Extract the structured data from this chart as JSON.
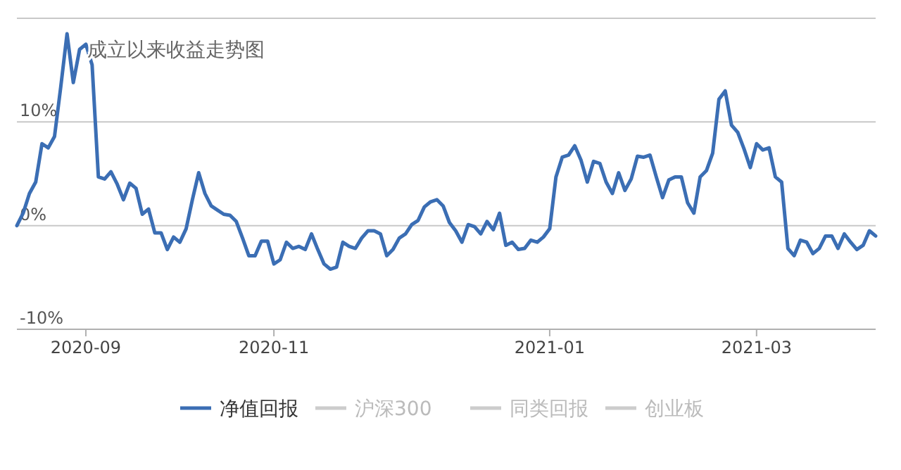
{
  "chart_data": {
    "type": "line",
    "title": "成立以来收益走势图",
    "categories": [
      null,
      null,
      null,
      null,
      null,
      null,
      null,
      null,
      null,
      null,
      null,
      "2020-09",
      null,
      null,
      null,
      null,
      null,
      null,
      null,
      null,
      null,
      null,
      null,
      null,
      null,
      null,
      null,
      null,
      null,
      null,
      null,
      null,
      null,
      null,
      null,
      null,
      null,
      null,
      null,
      null,
      null,
      "2020-11",
      null,
      null,
      null,
      null,
      null,
      null,
      null,
      null,
      null,
      null,
      null,
      null,
      null,
      null,
      null,
      null,
      null,
      null,
      null,
      null,
      null,
      null,
      null,
      null,
      null,
      null,
      null,
      null,
      null,
      null,
      null,
      null,
      null,
      null,
      null,
      null,
      null,
      null,
      null,
      null,
      null,
      null,
      null,
      "2021-01",
      null,
      null,
      null,
      null,
      null,
      null,
      null,
      null,
      null,
      null,
      null,
      null,
      null,
      null,
      null,
      null,
      null,
      null,
      null,
      null,
      null,
      null,
      null,
      null,
      null,
      null,
      null,
      null,
      null,
      null,
      null,
      null,
      "2021-03",
      null,
      null,
      null,
      null,
      null,
      null,
      null,
      null,
      null,
      null,
      null,
      null,
      null,
      null,
      null,
      null,
      null,
      null,
      null
    ],
    "series": [
      {
        "name": "净值回报",
        "color": "#3b6eb4",
        "values": [
          0,
          1.2,
          3.1,
          4.2,
          7.9,
          7.5,
          8.6,
          13.4,
          18.5,
          13.8,
          17,
          17.5,
          15.5,
          4.7,
          4.5,
          5.2,
          4,
          2.5,
          4.1,
          3.6,
          1.1,
          1.6,
          -0.7,
          -0.7,
          -2.3,
          -1.1,
          -1.6,
          -0.3,
          2.5,
          5.1,
          3.1,
          1.9,
          1.5,
          1.1,
          1,
          0.4,
          -1.2,
          -2.9,
          -2.9,
          -1.5,
          -1.5,
          -3.7,
          -3.3,
          -1.6,
          -2.2,
          -2,
          -2.3,
          -0.8,
          -2.3,
          -3.7,
          -4.2,
          -4,
          -1.6,
          -2,
          -2.2,
          -1.2,
          -0.5,
          -0.5,
          -0.8,
          -2.9,
          -2.3,
          -1.2,
          -0.8,
          0.1,
          0.5,
          1.8,
          2.3,
          2.5,
          1.9,
          0.3,
          -0.5,
          -1.6,
          0.1,
          -0.1,
          -0.8,
          0.4,
          -0.4,
          1.2,
          -1.9,
          -1.6,
          -2.3,
          -2.2,
          -1.4,
          -1.6,
          -1.1,
          -0.3,
          4.7,
          6.6,
          6.8,
          7.7,
          6.3,
          4.2,
          6.2,
          6,
          4.2,
          3.1,
          5.1,
          3.4,
          4.5,
          6.7,
          6.6,
          6.8,
          4.7,
          2.7,
          4.4,
          4.7,
          4.7,
          2.2,
          1.2,
          4.7,
          5.3,
          7,
          12.2,
          13,
          9.7,
          9,
          7.4,
          5.6,
          7.9,
          7.3,
          7.5,
          4.7,
          4.2,
          -2.2,
          -2.9,
          -1.4,
          -1.6,
          -2.7,
          -2.2,
          -1,
          -1,
          -2.2,
          -0.8,
          -1.6,
          -2.3,
          -1.9,
          -0.5,
          -1
        ]
      },
      {
        "name": "沪深300",
        "color": "#cccccc",
        "values": [
          null,
          null,
          null,
          null,
          null,
          null,
          null,
          null,
          null,
          null,
          null,
          null,
          null,
          null,
          null,
          null,
          null,
          null,
          null,
          null,
          null,
          null,
          null,
          null,
          null,
          null,
          null,
          null,
          null,
          null,
          null,
          null,
          null,
          null,
          null,
          null,
          null,
          null,
          null,
          null,
          null,
          null,
          null,
          null,
          null,
          null,
          null,
          null,
          null,
          null,
          null,
          null,
          null,
          null,
          null,
          null,
          null,
          null,
          null,
          null,
          null,
          null,
          null,
          null,
          null,
          null,
          null,
          null,
          null,
          null,
          null,
          null,
          null,
          null,
          null,
          null,
          null,
          null,
          null,
          null,
          null,
          null,
          null,
          null,
          null,
          null,
          null,
          null,
          null,
          null,
          null,
          null,
          null,
          null,
          null,
          null,
          null,
          null,
          null,
          null,
          null,
          null,
          null,
          null,
          null,
          null,
          null,
          null,
          null,
          null,
          null,
          null,
          null,
          null,
          null,
          null,
          null,
          null,
          null,
          null,
          null,
          null,
          null,
          null,
          null,
          null,
          null,
          null,
          null,
          null,
          null,
          null,
          null,
          null,
          null,
          null,
          null,
          null
        ]
      },
      {
        "name": "同类回报",
        "color": "#cccccc",
        "values": [
          null,
          null,
          null,
          null,
          null,
          null,
          null,
          null,
          null,
          null,
          null,
          null,
          null,
          null,
          null,
          null,
          null,
          null,
          null,
          null,
          null,
          null,
          null,
          null,
          null,
          null,
          null,
          null,
          null,
          null,
          null,
          null,
          null,
          null,
          null,
          null,
          null,
          null,
          null,
          null,
          null,
          null,
          null,
          null,
          null,
          null,
          null,
          null,
          null,
          null,
          null,
          null,
          null,
          null,
          null,
          null,
          null,
          null,
          null,
          null,
          null,
          null,
          null,
          null,
          null,
          null,
          null,
          null,
          null,
          null,
          null,
          null,
          null,
          null,
          null,
          null,
          null,
          null,
          null,
          null,
          null,
          null,
          null,
          null,
          null,
          null,
          null,
          null,
          null,
          null,
          null,
          null,
          null,
          null,
          null,
          null,
          null,
          null,
          null,
          null,
          null,
          null,
          null,
          null,
          null,
          null,
          null,
          null,
          null,
          null,
          null,
          null,
          null,
          null,
          null,
          null,
          null,
          null,
          null,
          null,
          null,
          null,
          null,
          null,
          null,
          null,
          null,
          null,
          null,
          null,
          null,
          null,
          null,
          null,
          null,
          null,
          null,
          null
        ]
      },
      {
        "name": "创业板",
        "color": "#cccccc",
        "values": [
          null,
          null,
          null,
          null,
          null,
          null,
          null,
          null,
          null,
          null,
          null,
          null,
          null,
          null,
          null,
          null,
          null,
          null,
          null,
          null,
          null,
          null,
          null,
          null,
          null,
          null,
          null,
          null,
          null,
          null,
          null,
          null,
          null,
          null,
          null,
          null,
          null,
          null,
          null,
          null,
          null,
          null,
          null,
          null,
          null,
          null,
          null,
          null,
          null,
          null,
          null,
          null,
          null,
          null,
          null,
          null,
          null,
          null,
          null,
          null,
          null,
          null,
          null,
          null,
          null,
          null,
          null,
          null,
          null,
          null,
          null,
          null,
          null,
          null,
          null,
          null,
          null,
          null,
          null,
          null,
          null,
          null,
          null,
          null,
          null,
          null,
          null,
          null,
          null,
          null,
          null,
          null,
          null,
          null,
          null,
          null,
          null,
          null,
          null,
          null,
          null,
          null,
          null,
          null,
          null,
          null,
          null,
          null,
          null,
          null,
          null,
          null,
          null,
          null,
          null,
          null,
          null,
          null,
          null,
          null,
          null,
          null,
          null,
          null,
          null,
          null,
          null,
          null,
          null,
          null,
          null,
          null,
          null,
          null,
          null,
          null,
          null,
          null
        ]
      }
    ],
    "ylim": [
      -10,
      20
    ],
    "yticks": [
      {
        "value": -10,
        "label": "-10%"
      },
      {
        "value": 0,
        "label": "0%"
      },
      {
        "value": 10,
        "label": "10%"
      },
      {
        "value": 20,
        "label": null
      }
    ],
    "grid": "y",
    "legend": "bottom"
  }
}
